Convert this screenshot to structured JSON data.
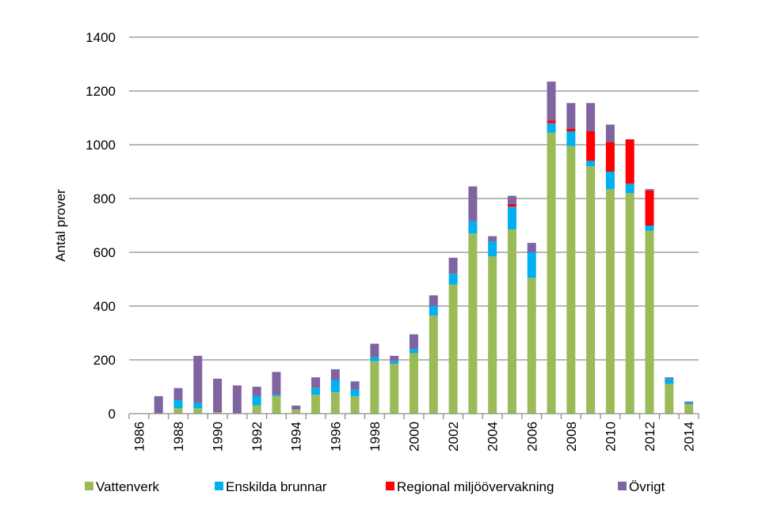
{
  "chart_data": {
    "type": "bar",
    "stacked": true,
    "title": "",
    "xlabel": "",
    "ylabel": "Antal prover",
    "ylim": [
      0,
      1400
    ],
    "yticks": [
      0,
      200,
      400,
      600,
      800,
      1000,
      1200,
      1400
    ],
    "grid": "horizontal",
    "legend_position": "bottom",
    "categories": [
      "1986",
      "1987",
      "1988",
      "1989",
      "1990",
      "1991",
      "1992",
      "1993",
      "1994",
      "1995",
      "1996",
      "1997",
      "1998",
      "1999",
      "2000",
      "2001",
      "2002",
      "2003",
      "2004",
      "2005",
      "2006",
      "2007",
      "2008",
      "2009",
      "2010",
      "2011",
      "2012",
      "2013",
      "2014"
    ],
    "x_tick_labels": [
      "1986",
      "1988",
      "1990",
      "1992",
      "1994",
      "1996",
      "1998",
      "2000",
      "2002",
      "2004",
      "2006",
      "2008",
      "2010",
      "2012",
      "2014"
    ],
    "series": [
      {
        "name": "Vattenverk",
        "color": "#9bbb59",
        "values": [
          0,
          0,
          20,
          20,
          5,
          0,
          30,
          65,
          15,
          70,
          80,
          65,
          195,
          185,
          225,
          365,
          480,
          670,
          585,
          685,
          505,
          1045,
          995,
          920,
          835,
          820,
          680,
          110,
          35
        ]
      },
      {
        "name": "Enskilda brunnar",
        "color": "#00b0f0",
        "values": [
          0,
          0,
          30,
          20,
          0,
          0,
          35,
          5,
          0,
          25,
          45,
          25,
          15,
          10,
          15,
          35,
          40,
          45,
          55,
          85,
          95,
          35,
          55,
          20,
          65,
          35,
          20,
          20,
          5
        ]
      },
      {
        "name": "Regional miljöövervakning",
        "color": "#ff0000",
        "values": [
          0,
          0,
          0,
          0,
          0,
          0,
          0,
          0,
          0,
          0,
          0,
          0,
          0,
          0,
          0,
          0,
          0,
          0,
          0,
          10,
          0,
          10,
          10,
          110,
          110,
          165,
          130,
          0,
          0
        ]
      },
      {
        "name": "Övrigt",
        "color": "#8064a2",
        "values": [
          0,
          65,
          45,
          175,
          125,
          105,
          35,
          85,
          15,
          40,
          40,
          30,
          50,
          20,
          55,
          40,
          60,
          130,
          20,
          30,
          35,
          145,
          95,
          105,
          65,
          0,
          5,
          5,
          5
        ]
      }
    ]
  }
}
